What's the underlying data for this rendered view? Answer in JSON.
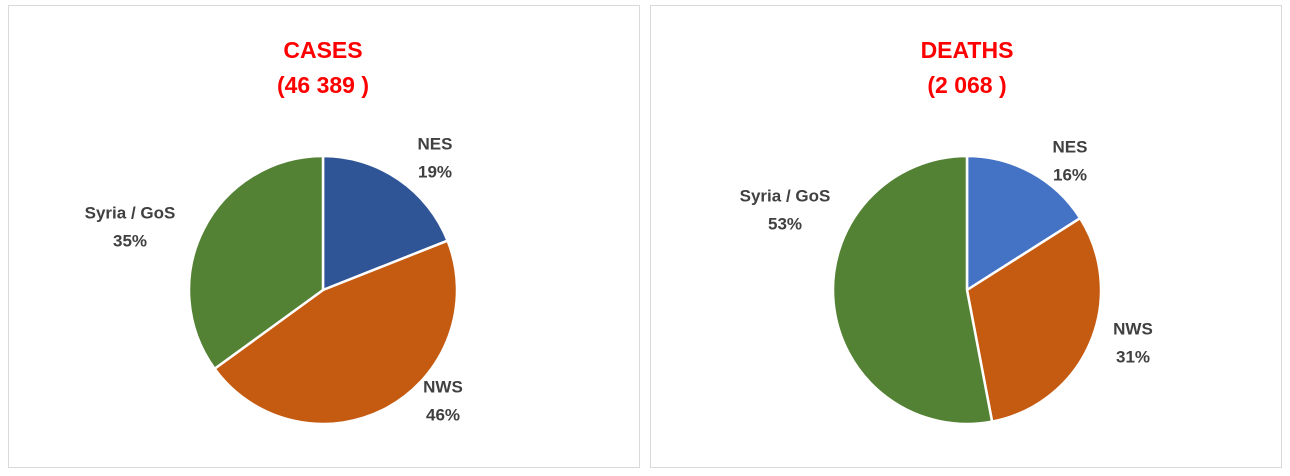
{
  "chart_data": [
    {
      "type": "pie",
      "title": "CASES",
      "subtitle": "(46 389 )",
      "categories": [
        "NES",
        "NWS",
        "Syria / GoS"
      ],
      "values": [
        19,
        46,
        35
      ],
      "value_labels": [
        "19%",
        "46%",
        "35%"
      ],
      "colors": [
        "#2f5597",
        "#c55a11",
        "#548235"
      ]
    },
    {
      "type": "pie",
      "title": "DEATHS",
      "subtitle": "(2 068 )",
      "categories": [
        "NES",
        "NWS",
        "Syria / GoS"
      ],
      "values": [
        16,
        31,
        53
      ],
      "value_labels": [
        "16%",
        "31%",
        "53%"
      ],
      "colors": [
        "#4472c4",
        "#c55a11",
        "#548235"
      ]
    }
  ]
}
